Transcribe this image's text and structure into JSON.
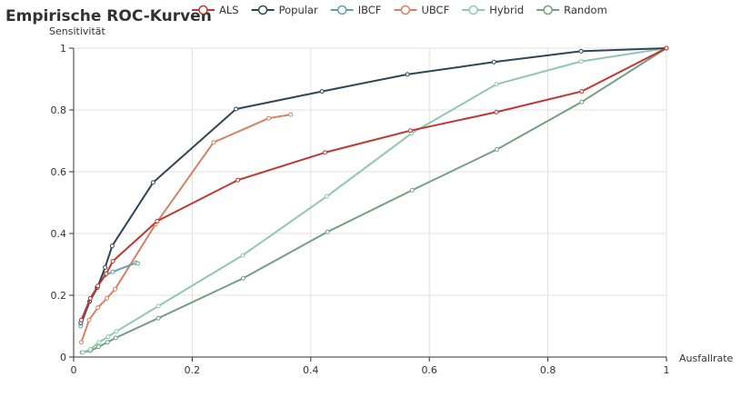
{
  "chart_data": {
    "type": "line",
    "title": "Empirische ROC-Kurven",
    "xlabel": "Ausfallrate",
    "ylabel": "Sensitivität",
    "xlim": [
      0,
      1
    ],
    "ylim": [
      0,
      1
    ],
    "x_ticks": [
      "0",
      "0.2",
      "0.4",
      "0.6",
      "0.8",
      "1"
    ],
    "y_ticks": [
      "0",
      "0.2",
      "0.4",
      "0.6",
      "0.8",
      "1"
    ],
    "grid": true,
    "legend_position": "top",
    "series": [
      {
        "name": "ALS",
        "color": "#c23531",
        "points": [
          [
            0.013,
            0.12
          ],
          [
            0.028,
            0.19
          ],
          [
            0.041,
            0.23
          ],
          [
            0.055,
            0.27
          ],
          [
            0.066,
            0.31
          ],
          [
            0.141,
            0.44
          ],
          [
            0.277,
            0.573
          ],
          [
            0.424,
            0.662
          ],
          [
            0.568,
            0.733
          ],
          [
            0.713,
            0.793
          ],
          [
            0.857,
            0.86
          ],
          [
            1.0,
            1.0
          ]
        ]
      },
      {
        "name": "Popular",
        "color": "#2f4554",
        "points": [
          [
            0.012,
            0.11
          ],
          [
            0.027,
            0.18
          ],
          [
            0.04,
            0.225
          ],
          [
            0.053,
            0.29
          ],
          [
            0.065,
            0.36
          ],
          [
            0.134,
            0.565
          ],
          [
            0.274,
            0.803
          ],
          [
            0.419,
            0.86
          ],
          [
            0.563,
            0.915
          ],
          [
            0.709,
            0.955
          ],
          [
            0.856,
            0.99
          ],
          [
            1.0,
            1.0
          ]
        ]
      },
      {
        "name": "IBCF",
        "color": "#61a0a8",
        "points": [
          [
            0.012,
            0.1
          ],
          [
            0.027,
            0.18
          ],
          [
            0.039,
            0.225
          ],
          [
            0.053,
            0.265
          ],
          [
            0.066,
            0.276
          ],
          [
            0.105,
            0.305
          ],
          [
            0.108,
            0.303
          ]
        ]
      },
      {
        "name": "UBCF",
        "color": "#d48265",
        "points": [
          [
            0.013,
            0.048
          ],
          [
            0.026,
            0.12
          ],
          [
            0.041,
            0.16
          ],
          [
            0.056,
            0.19
          ],
          [
            0.07,
            0.22
          ],
          [
            0.138,
            0.43
          ],
          [
            0.236,
            0.695
          ],
          [
            0.329,
            0.773
          ],
          [
            0.366,
            0.785
          ]
        ]
      },
      {
        "name": "Hybrid",
        "color": "#91c7ae",
        "points": [
          [
            0.015,
            0.015
          ],
          [
            0.028,
            0.025
          ],
          [
            0.043,
            0.048
          ],
          [
            0.058,
            0.066
          ],
          [
            0.072,
            0.083
          ],
          [
            0.143,
            0.165
          ],
          [
            0.285,
            0.329
          ],
          [
            0.427,
            0.52
          ],
          [
            0.57,
            0.724
          ],
          [
            0.713,
            0.883
          ],
          [
            0.856,
            0.957
          ],
          [
            1.0,
            1.0
          ]
        ]
      },
      {
        "name": "Random",
        "color": "#749f83",
        "points": [
          [
            0.014,
            0.015
          ],
          [
            0.028,
            0.02
          ],
          [
            0.042,
            0.033
          ],
          [
            0.057,
            0.048
          ],
          [
            0.071,
            0.062
          ],
          [
            0.143,
            0.126
          ],
          [
            0.286,
            0.255
          ],
          [
            0.428,
            0.405
          ],
          [
            0.571,
            0.54
          ],
          [
            0.714,
            0.672
          ],
          [
            0.857,
            0.826
          ],
          [
            1.0,
            1.0
          ]
        ]
      }
    ]
  }
}
